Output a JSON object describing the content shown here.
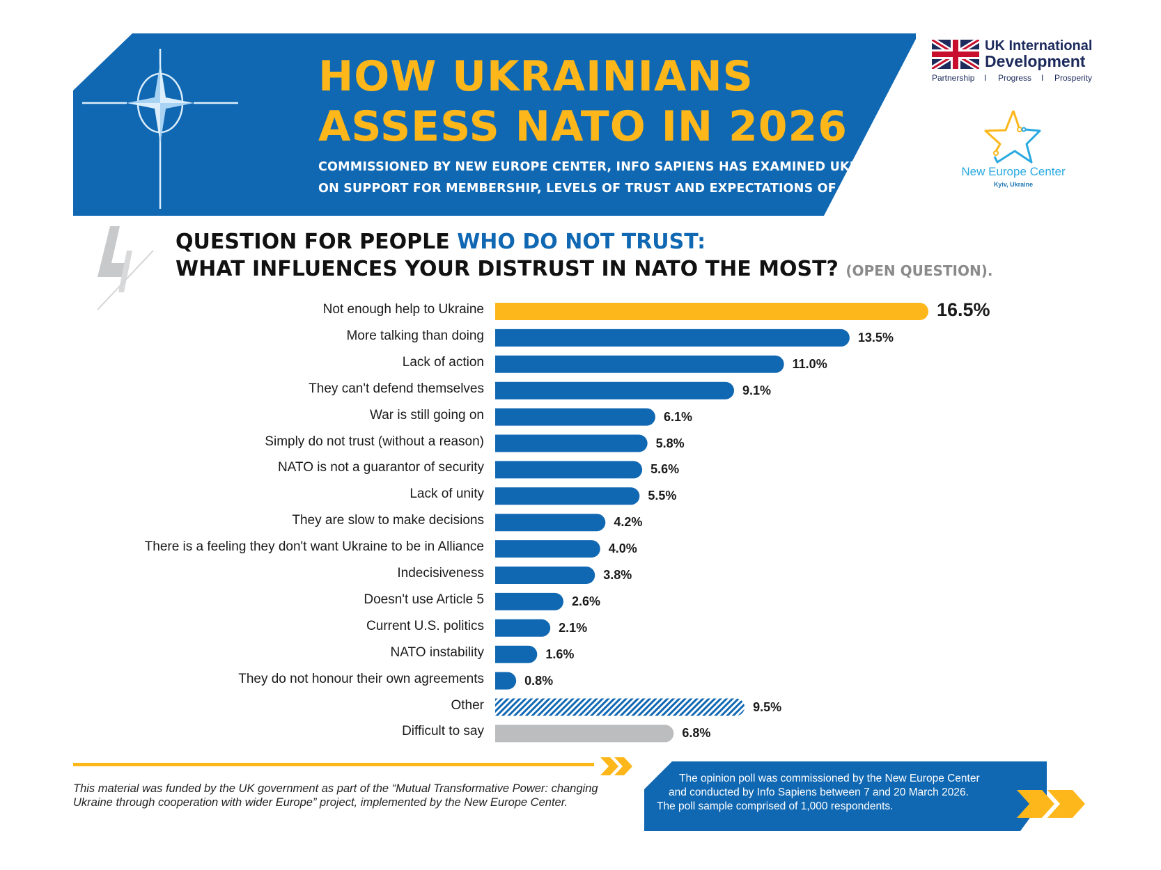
{
  "header": {
    "title_line1": "HOW UKRAINIANS",
    "title_line2": "ASSESS NATO IN 2026",
    "subtitle_line1": "COMMISSIONED BY NEW EUROPE CENTER, INFO SAPIENS HAS EXAMINED UKRAINIANS' VIEWS",
    "subtitle_line2": "ON SUPPORT FOR MEMBERSHIP, LEVELS OF TRUST AND EXPECTATIONS OF THE ALLIANCE",
    "emblem_icon": "nato-compass-star-icon"
  },
  "logos": {
    "uk_line1": "UK International",
    "uk_line2": "Development",
    "uk_tag1": "Partnership",
    "uk_sep1": "I",
    "uk_tag2": "Progress",
    "uk_sep2": "I",
    "uk_tag3": "Prosperity",
    "nec_name": "New Europe Center",
    "nec_city": "Kyiv, Ukraine"
  },
  "question": {
    "number": "4",
    "line1_black": "QUESTION FOR PEOPLE ",
    "line1_blue": "WHO DO NOT TRUST:",
    "line2_black": "WHAT INFLUENCES YOUR DISTRUST IN NATO THE MOST? ",
    "line2_grey": "(OPEN QUESTION)."
  },
  "colors": {
    "blue": "#1068b3",
    "yellow": "#fdb71a",
    "grey": "#bcbdbf",
    "text": "#1a1a1a"
  },
  "chart_data": {
    "type": "bar",
    "orientation": "horizontal",
    "title": "WHAT INFLUENCES YOUR DISTRUST IN NATO THE MOST?",
    "xlabel": "",
    "ylabel": "",
    "unit": "%",
    "xlim": [
      0,
      16.5
    ],
    "grid": false,
    "categories": [
      "Not enough help to Ukraine",
      "More talking than doing",
      "Lack of action",
      "They can't defend themselves",
      "War is still going on",
      "Simply do not trust (without a reason)",
      "NATO is not a guarantor of security",
      "Lack of unity",
      "They are slow to make decisions",
      "There is a feeling they don't want Ukraine to be in Alliance",
      "Indecisiveness",
      "Doesn't use Article 5",
      "Current U.S. politics",
      "NATO instability",
      "They do not honour their own agreements",
      "Other",
      "Difficult to say"
    ],
    "values": [
      16.5,
      13.5,
      11.0,
      9.1,
      6.1,
      5.8,
      5.6,
      5.5,
      4.2,
      4.0,
      3.8,
      2.6,
      2.1,
      1.6,
      0.8,
      9.5,
      6.8
    ],
    "labels": [
      "16.5%",
      "13.5%",
      "11.0%",
      "9.1%",
      "6.1%",
      "5.8%",
      "5.6%",
      "5.5%",
      "4.2%",
      "4.0%",
      "3.8%",
      "2.6%",
      "2.1%",
      "1.6%",
      "0.8%",
      "9.5%",
      "6.8%"
    ],
    "styles": [
      "highlight",
      "normal",
      "normal",
      "normal",
      "normal",
      "normal",
      "normal",
      "normal",
      "normal",
      "normal",
      "normal",
      "normal",
      "normal",
      "normal",
      "normal",
      "hatched",
      "grey"
    ]
  },
  "footer": {
    "funding_text": "This material was funded by the UK government as part of the “Mutual Transformative Power: changing Ukraine through cooperation with wider Europe” project, implemented by the New Europe Center.",
    "poll_line1": "The opinion poll was commissioned by the New Europe Center",
    "poll_line2": "and conducted by Info Sapiens between 7 and 20 March 2026.",
    "poll_line3": "The poll sample comprised of 1,000 respondents."
  }
}
